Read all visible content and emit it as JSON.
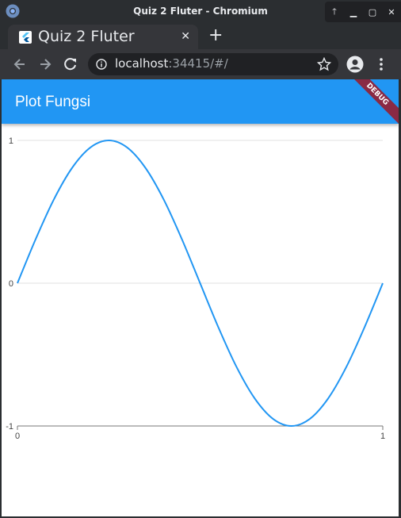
{
  "window": {
    "title": "Quiz 2 Fluter - Chromium",
    "controls": [
      "up-icon",
      "minimize-icon",
      "maximize-icon",
      "close-icon"
    ]
  },
  "tab": {
    "title": "Quiz 2 Fluter",
    "close": "✕",
    "favicon": "flutter-icon"
  },
  "new_tab": "+",
  "address_bar": {
    "host": "localhost",
    "rest": ":34415/#/"
  },
  "app": {
    "title": "Plot Fungsi",
    "debug_banner": "DEBUG",
    "accent_color": "#2196f3"
  },
  "chart_data": {
    "type": "line",
    "title": "",
    "xlabel": "",
    "ylabel": "",
    "xlim": [
      0,
      1
    ],
    "ylim": [
      -1,
      1
    ],
    "x_ticks": [
      "0",
      "1"
    ],
    "y_ticks": [
      "1",
      "0",
      "-1"
    ],
    "grid": true,
    "series": [
      {
        "color": "#2196f3",
        "x": [
          0,
          0.05,
          0.1,
          0.15,
          0.2,
          0.25,
          0.3,
          0.35,
          0.4,
          0.45,
          0.5,
          0.55,
          0.6,
          0.65,
          0.7,
          0.75,
          0.8,
          0.85,
          0.9,
          0.95,
          1
        ],
        "y": [
          0,
          0.309,
          0.588,
          0.809,
          0.951,
          1,
          0.951,
          0.809,
          0.588,
          0.309,
          0,
          -0.309,
          -0.588,
          -0.809,
          -0.951,
          -1,
          -0.951,
          -0.809,
          -0.588,
          -0.309,
          0
        ]
      }
    ]
  }
}
